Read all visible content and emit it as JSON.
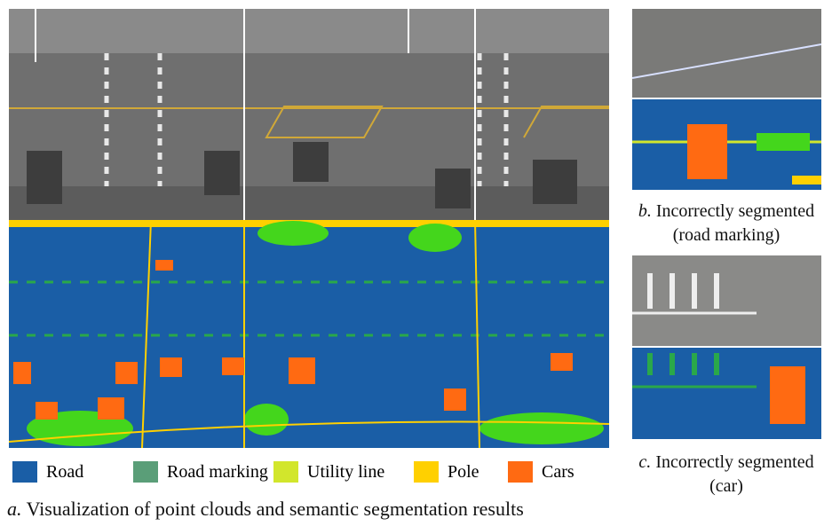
{
  "figure": {
    "legend": [
      {
        "label": "Road",
        "color": "#1a5ea6"
      },
      {
        "label": "Road marking",
        "color": "#5a9e78"
      },
      {
        "label": "Utility line",
        "color": "#d2e62c"
      },
      {
        "label": "Pole",
        "color": "#ffd000"
      },
      {
        "label": "Cars",
        "color": "#ff6a12"
      }
    ],
    "panels": [
      {
        "letter": "a.",
        "caption": [
          "Visualization of point clouds and semantic segmentation results"
        ]
      },
      {
        "letter": "b.",
        "caption": [
          "Incorrectly segmented",
          "(road marking)"
        ]
      },
      {
        "letter": "c.",
        "caption": [
          "Incorrectly segmented",
          "(car)"
        ]
      }
    ]
  }
}
